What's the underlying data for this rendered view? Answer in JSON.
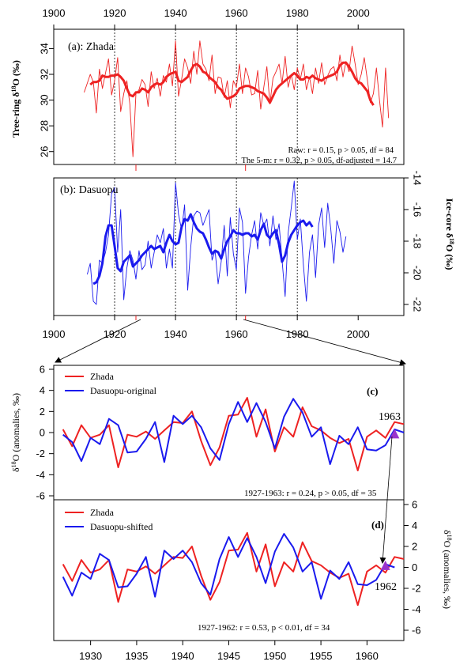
{
  "chart_data": [
    {
      "id": "a",
      "type": "line",
      "panel_label": "(a): Zhada",
      "ylabel_prefix": "Tree-ring  δ",
      "ylabel_sup": "18",
      "ylabel_suffix": "O (‰)",
      "xticks": [
        "1900",
        "1920",
        "1940",
        "1960",
        "1980",
        "2000"
      ],
      "xlim": [
        1900,
        2015
      ],
      "ylim": [
        25,
        35.5
      ],
      "yticks": [
        "26",
        "28",
        "30",
        "32",
        "34"
      ],
      "stats": [
        "Raw:  r = 0.15, p > 0.05,  df = 84",
        "The 5-m:  r = 0.32, p > 0.05,  df-adjusted = 14.7"
      ],
      "color": "#ee2222",
      "raw_x_start": 1910,
      "raw": [
        30.6,
        31.3,
        32.0,
        31.4,
        29.0,
        32.4,
        30.9,
        32.1,
        33.2,
        30.4,
        31.5,
        33.3,
        29.1,
        30.5,
        31.5,
        29.7,
        25.6,
        30.5,
        30.8,
        31.6,
        31.2,
        29.5,
        32.2,
        30.9,
        31.7,
        30.3,
        31.9,
        31.4,
        32.8,
        31.1,
        34.6,
        30.3,
        31.6,
        33.2,
        32.5,
        31.3,
        33.8,
        32.0,
        34.6,
        32.8,
        32.4,
        31.5,
        33.5,
        30.5,
        31.8,
        31.7,
        30.2,
        31.5,
        29.4,
        31.5,
        31.0,
        32.8,
        30.5,
        32.5,
        31.8,
        30.4,
        30.5,
        32.3,
        29.3,
        31.0,
        32.6,
        29.7,
        31.7,
        32.2,
        32.8,
        31.3,
        33.4,
        31.0,
        32.0,
        30.8,
        32.5,
        31.6,
        32.8,
        30.8,
        31.8,
        30.5,
        32.5,
        31.3,
        32.9,
        31.2,
        31.9,
        32.4,
        32.6,
        31.5,
        33.5,
        31.8,
        33.0,
        32.2,
        34.2,
        32.8,
        31.2,
        32.0,
        33.3,
        31.6,
        29.8,
        30.5,
        32.5,
        30.0,
        27.9,
        32.5,
        28.6
      ],
      "smooth_x_start": 1912,
      "smooth": [
        31.2,
        31.4,
        31.4,
        31.5,
        31.9,
        31.8,
        31.8,
        31.9,
        31.9,
        32.0,
        31.8,
        31.5,
        30.9,
        30.4,
        30.3,
        30.6,
        30.6,
        30.9,
        30.8,
        30.6,
        31.0,
        31.2,
        31.3,
        31.2,
        31.4,
        31.8,
        32.0,
        32.1,
        32.2,
        31.5,
        31.4,
        31.6,
        31.8,
        32.3,
        32.7,
        32.8,
        32.6,
        32.2,
        32.1,
        31.8,
        31.6,
        31.4,
        31.0,
        30.8,
        30.4,
        30.1,
        30.2,
        30.3,
        30.5,
        30.9,
        31.0,
        31.1,
        31.1,
        31.0,
        30.9,
        30.7,
        30.6,
        30.5,
        30.2,
        29.8,
        30.3,
        30.8,
        31.1,
        31.3,
        31.5,
        31.7,
        31.9,
        32.1,
        31.9,
        31.6,
        31.6,
        31.8,
        31.7,
        31.9,
        31.7,
        31.6,
        31.5,
        31.7,
        31.8,
        31.9,
        32.0,
        32.2,
        32.7,
        32.9,
        32.9,
        32.6,
        32.2,
        31.7,
        31.4,
        31.3,
        31.0,
        30.7,
        30.0,
        29.6
      ]
    },
    {
      "id": "b",
      "type": "line",
      "panel_label": "(b): Dasuopu",
      "ylabel_prefix": "Ice-core  δ",
      "ylabel_sup": "18",
      "ylabel_suffix": "O (‰)",
      "xticks": [
        "1900",
        "1920",
        "1940",
        "1960",
        "1980",
        "2000"
      ],
      "xlim": [
        1900,
        2015
      ],
      "ylim": [
        -22.7,
        -14
      ],
      "yticks": [
        "-14",
        "-16",
        "-18",
        "-20",
        "-22"
      ],
      "color": "#1a1aee",
      "raw_x_start": 1911,
      "raw": [
        -20.1,
        -19.4,
        -21.8,
        -22.0,
        -19.2,
        -19.4,
        -18.7,
        -17.6,
        -15.0,
        -14.6,
        -18.7,
        -16.0,
        -21.7,
        -19.7,
        -18.6,
        -19.2,
        -20.4,
        -18.6,
        -19.8,
        -19.5,
        -18.0,
        -19.7,
        -18.7,
        -17.6,
        -18.1,
        -17.2,
        -19.7,
        -18.5,
        -19.7,
        -14.3,
        -16.3,
        -17.3,
        -15.7,
        -21.1,
        -18.4,
        -16.4,
        -16.1,
        -16.2,
        -17.0,
        -16.5,
        -16.0,
        -19.2,
        -18.6,
        -20.7,
        -19.3,
        -17.0,
        -20.2,
        -16.5,
        -18.8,
        -19.8,
        -15.9,
        -16.8,
        -21.3,
        -19.0,
        -17.6,
        -16.7,
        -18.5,
        -16.2,
        -17.0,
        -16.6,
        -18.3,
        -16.4,
        -17.9,
        -16.9,
        -19.2,
        -21.5,
        -17.5,
        -15.9,
        -14.2,
        -17.9,
        -16.6,
        -19.5,
        -21.8,
        -18.7,
        -17.6,
        -20.3,
        -17.0,
        -15.9,
        -18.4,
        -15.6,
        -17.2,
        -19.4,
        -16.7,
        -17.4,
        -18.7,
        -17.7
      ],
      "smooth_x_start": 1913,
      "smooth": [
        -20.7,
        -20.6,
        -20.2,
        -19.4,
        -17.7,
        -17.0,
        -17.0,
        -18.3,
        -19.7,
        -19.9,
        -19.3,
        -19.1,
        -18.9,
        -19.6,
        -19.4,
        -19.2,
        -18.9,
        -18.7,
        -18.5,
        -18.3,
        -18.5,
        -18.4,
        -18.3,
        -18.7,
        -18.1,
        -17.6,
        -18.0,
        -18.2,
        -18.1,
        -17.1,
        -16.6,
        -16.7,
        -16.3,
        -16.8,
        -17.2,
        -17.4,
        -17.5,
        -17.9,
        -18.4,
        -18.8,
        -18.6,
        -18.7,
        -19.1,
        -18.5,
        -18.0,
        -17.7,
        -17.3,
        -17.5,
        -17.5,
        -17.6,
        -17.5,
        -17.5,
        -17.7,
        -17.6,
        -17.9,
        -17.3,
        -16.9,
        -17.6,
        -17.8,
        -17.5,
        -17.3,
        -18.2,
        -19.3,
        -18.9,
        -18.1,
        -17.6,
        -17.3,
        -17.0,
        -16.8,
        -16.7,
        -17.0,
        -16.8,
        -17.1
      ]
    },
    {
      "id": "c",
      "type": "line",
      "panel_label": "(c)",
      "ylabel_prefix": "δ",
      "ylabel_sup": "18",
      "ylabel_suffix": "O (anomalies, ‰)",
      "ylim": [
        -6,
        6
      ],
      "yticks": [
        "6",
        "4",
        "2",
        "0",
        "-2",
        "-4",
        "-6"
      ],
      "xlim": [
        1926,
        1964
      ],
      "x_start": 1927,
      "series": [
        {
          "name": "Zhada",
          "color": "#ee2222",
          "values": [
            0.3,
            -1.3,
            0.7,
            -0.5,
            -0.2,
            0.7,
            -3.3,
            -0.2,
            -0.4,
            0.1,
            -0.6,
            0.2,
            1.0,
            0.9,
            2.0,
            -0.8,
            -3.1,
            -1.4,
            1.6,
            1.7,
            3.3,
            -0.4,
            2.2,
            -1.8,
            0.5,
            -0.4,
            2.4,
            0.6,
            0.2,
            -0.5,
            -1.0,
            -0.6,
            -3.6,
            -0.4,
            0.2,
            -0.5,
            1.0,
            0.8
          ]
        },
        {
          "name": "Dasuopu-original",
          "color": "#1a1aee",
          "values": [
            -0.2,
            -0.9,
            -2.7,
            -0.5,
            -1.1,
            1.3,
            0.7,
            -1.9,
            -1.8,
            -0.6,
            1.0,
            -2.8,
            1.6,
            0.8,
            1.6,
            0.5,
            -1.5,
            -2.6,
            0.8,
            2.9,
            1.0,
            2.8,
            1.0,
            -1.5,
            1.5,
            3.2,
            1.9,
            -0.4,
            0.5,
            -3.0,
            -0.3,
            -1.1,
            0.5,
            -1.6,
            -1.7,
            -1.2,
            0.3,
            0.0
          ]
        }
      ],
      "marker": {
        "label": "1963",
        "x": 1963,
        "y": -0.1,
        "color": "#9933cc"
      },
      "stats": "1927-1963: r = 0.24, p > 0.05,  df = 35"
    },
    {
      "id": "d",
      "type": "line",
      "panel_label": "(d)",
      "ylabel_prefix": "δ",
      "ylabel_sup": "18",
      "ylabel_suffix": "O (anomalies, ‰)",
      "ylim": [
        -6,
        6
      ],
      "yticks": [
        "6",
        "4",
        "2",
        "0",
        "-2",
        "-4",
        "-6"
      ],
      "xlim": [
        1926,
        1964
      ],
      "xticks": [
        "1930",
        "1935",
        "1940",
        "1945",
        "1950",
        "1955",
        "1960"
      ],
      "x_start": 1927,
      "series": [
        {
          "name": "Zhada",
          "color": "#ee2222",
          "values": [
            0.3,
            -1.3,
            0.7,
            -0.5,
            -0.2,
            0.7,
            -3.3,
            -0.2,
            -0.4,
            0.1,
            -0.6,
            0.2,
            1.0,
            0.9,
            2.0,
            -0.8,
            -3.1,
            -1.4,
            1.6,
            1.7,
            3.3,
            -0.4,
            2.2,
            -1.8,
            0.5,
            -0.4,
            2.4,
            0.6,
            0.2,
            -0.5,
            -1.0,
            -0.6,
            -3.6,
            -0.4,
            0.2,
            -0.5,
            1.0,
            0.8
          ]
        },
        {
          "name": "Dasuopu-shifted",
          "color": "#1a1aee",
          "values": [
            -0.9,
            -2.7,
            -0.5,
            -1.1,
            1.3,
            0.7,
            -1.9,
            -1.8,
            -0.6,
            1.0,
            -2.8,
            1.6,
            0.8,
            1.6,
            0.5,
            -1.5,
            -2.6,
            0.8,
            2.9,
            1.0,
            2.8,
            1.0,
            -1.5,
            1.5,
            3.2,
            1.9,
            -0.4,
            0.5,
            -3.0,
            -0.3,
            -1.1,
            0.5,
            -1.6,
            -1.7,
            -1.2,
            0.3,
            0.0
          ]
        }
      ],
      "marker": {
        "label": "1962",
        "x": 1962,
        "y": 0.2,
        "color": "#9933cc"
      },
      "stats": "1927-1962: r = 0.53, p < 0.01,  df = 34"
    }
  ]
}
